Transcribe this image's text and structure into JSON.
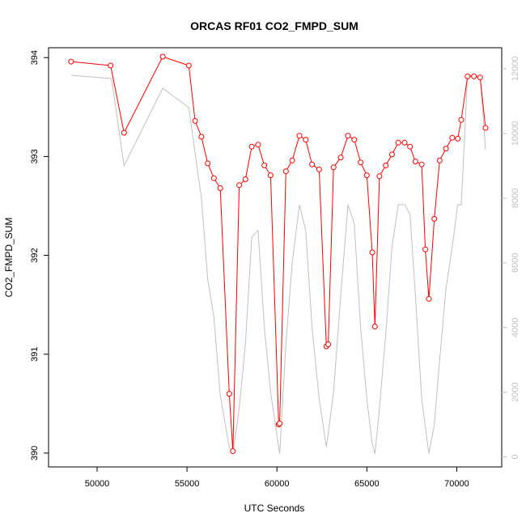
{
  "chart_data": {
    "type": "line",
    "title": "ORCAS RF01 CO2_FMPD_SUM",
    "xlabel": "UTC Seconds",
    "ylabel": "CO2_FMPD_SUM",
    "xlim": [
      47300,
      72500
    ],
    "ylim": [
      389.86,
      394.1
    ],
    "y2lim": [
      -310,
      12650
    ],
    "x_ticks": [
      50000,
      55000,
      60000,
      65000,
      70000
    ],
    "x_tick_labels": [
      "50000",
      "55000",
      "60000",
      "65000",
      "70000"
    ],
    "y_ticks": [
      390,
      391,
      392,
      393,
      394
    ],
    "y_tick_labels": [
      "390",
      "391",
      "392",
      "393",
      "394"
    ],
    "y2_ticks": [
      0,
      2000,
      4000,
      6000,
      8000,
      10000,
      12000
    ],
    "y2_tick_labels": [
      "0",
      "2000",
      "4000",
      "6000",
      "8000",
      "10000",
      "12000"
    ],
    "grid": false,
    "colors": {
      "primary": "#ff0000",
      "secondary": "#c0c0c0",
      "axis": "#000000"
    },
    "series": [
      {
        "axis": "left",
        "color": "#ff0000",
        "marker": "open-circle",
        "x": [
          48550,
          50750,
          51500,
          53650,
          55100,
          55450,
          55800,
          56150,
          56500,
          56850,
          57350,
          57550,
          57900,
          58250,
          58600,
          58950,
          59300,
          59650,
          60100,
          60150,
          60500,
          60850,
          61250,
          61600,
          61950,
          62350,
          62750,
          62850,
          63150,
          63550,
          63950,
          64300,
          64650,
          65000,
          65300,
          65450,
          65700,
          66050,
          66400,
          66750,
          67100,
          67400,
          67700,
          68050,
          68250,
          68450,
          68750,
          69050,
          69400,
          69750,
          70050,
          70250,
          70600,
          70950,
          71300,
          71600
        ],
        "y": [
          393.96,
          393.92,
          393.24,
          394.01,
          393.92,
          393.36,
          393.2,
          392.93,
          392.78,
          392.68,
          390.6,
          390.02,
          392.71,
          392.77,
          393.1,
          393.12,
          392.91,
          392.81,
          390.29,
          390.3,
          392.85,
          392.96,
          393.21,
          393.17,
          392.92,
          392.87,
          391.08,
          391.1,
          392.89,
          392.99,
          393.21,
          393.17,
          392.94,
          392.81,
          392.03,
          391.28,
          392.8,
          392.91,
          393.02,
          393.14,
          393.14,
          393.1,
          392.95,
          392.92,
          392.06,
          391.56,
          392.37,
          392.96,
          393.08,
          393.19,
          393.18,
          393.37,
          393.81,
          393.81,
          393.8,
          393.29
        ]
      },
      {
        "axis": "right",
        "color": "#c0c0c0",
        "x": [
          48550,
          50800,
          51500,
          53650,
          55100,
          55450,
          55800,
          56150,
          56500,
          56850,
          57350,
          57550,
          57900,
          58250,
          58600,
          58950,
          59300,
          59650,
          60150,
          60500,
          60850,
          61250,
          61600,
          61950,
          62350,
          62750,
          63150,
          63550,
          63950,
          64300,
          64650,
          65000,
          65300,
          65450,
          65700,
          66050,
          66400,
          66750,
          67100,
          67400,
          67700,
          68050,
          68450,
          68750,
          69050,
          69400,
          69750,
          70050,
          70250,
          70600,
          70950,
          71300,
          71600
        ],
        "y": [
          11800,
          11700,
          9000,
          11400,
          10800,
          9400,
          8000,
          5500,
          4300,
          1900,
          300,
          100,
          1500,
          3500,
          6800,
          7000,
          4000,
          2000,
          100,
          3500,
          6000,
          7800,
          7000,
          4000,
          1800,
          300,
          2000,
          5000,
          7800,
          7200,
          4000,
          1800,
          400,
          100,
          1500,
          3800,
          6500,
          7800,
          7800,
          7500,
          5000,
          1800,
          100,
          1000,
          3000,
          5200,
          6500,
          7800,
          7800,
          11800,
          11800,
          11800,
          9500
        ]
      }
    ]
  }
}
